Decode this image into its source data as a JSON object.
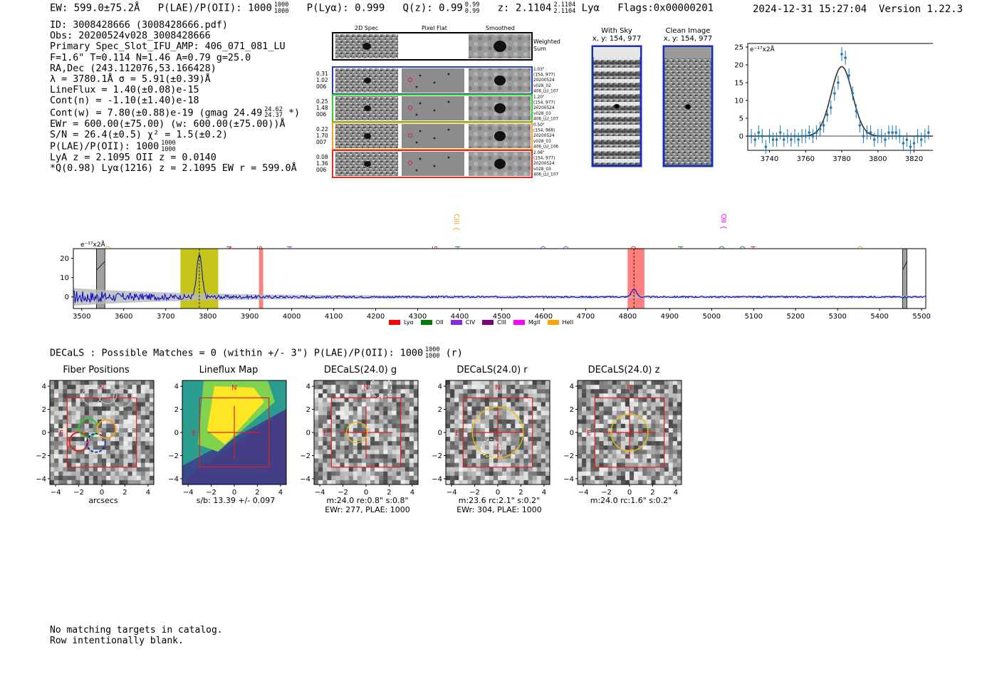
{
  "header": {
    "ew": "EW: 599.0±75.2Å",
    "plae_label": "P(LAE)/P(OII): 1000",
    "plae_hi": "1000",
    "plae_lo": "1000",
    "plya": "P(Lyα): 0.999",
    "qz_label": "Q(z): 0.99",
    "qz_hi": "0.99",
    "qz_lo": "0.99",
    "z_label": "z: 2.1104",
    "z_hi": "2.1104",
    "z_lo": "2.1104",
    "z_line": "Lyα",
    "flags": "Flags:0x00000201",
    "timestamp": "2024-12-31 15:27:04",
    "version": "Version 1.22.3"
  },
  "info": {
    "id": "ID: 3008428666 (3008428666.pdf)",
    "obs": "Obs: 20200524v028_3008428666",
    "primary": "Primary Spec_Slot_IFU_AMP: 406_071_081_LU",
    "fit": "F=1.6\"  T=0.114  N=1.46  A=0.79  g=25.0",
    "radec": "RA,Dec (243.112076,53.166428)",
    "lambda": "λ = 3780.1Å   σ = 5.91(±0.39)Å",
    "lineflux": "LineFlux = 1.40(±0.08)e-15",
    "contn": "Cont(n) = -1.10(±1.40)e-18",
    "contw": "Cont(w) = 7.80(±0.88)e-19 (gmag 24.49",
    "contw_hi": "24.62",
    "contw_lo": "24.37",
    "contw_end": "*)",
    "ewr": "EWr = 600.00(±75.00) (w: 600.00(±75.00))Å",
    "sn": "S/N = 26.4(±0.5)  χ² = 1.5(±0.2)",
    "plae": "P(LAE)/P(OII): 1000",
    "plae_hi": "1000",
    "plae_lo": "1000",
    "lya": "LyA z = 2.1095  OII z = 0.0140",
    "q": "*Q(0.98) Lyα(1216) z = 2.1095  EW r = 599.0Å"
  },
  "spec2d": {
    "col_2d": "2D Spec",
    "col_flat": "Pixel Flat",
    "col_smooth": "Smoothed",
    "weighted": "Weighted",
    "sum": "Sum",
    "rows": [
      {
        "w1": "0.31",
        "w2": "1.02",
        "fib": "006",
        "dist": "1.03\"",
        "xy": "(154, 977)",
        "date": "20200524",
        "shot": "v028_02",
        "amp": "406_LU_107",
        "color": "#1f3fbf"
      },
      {
        "w1": "0.25",
        "w2": "1.48",
        "fib": "006",
        "dist": "1.20\"",
        "xy": "(154, 977)",
        "date": "20200524",
        "shot": "v028_03",
        "amp": "406_LU_107",
        "color": "#2ecc2e"
      },
      {
        "w1": "0.22",
        "w2": "1.70",
        "fib": "007",
        "dist": "0.50\"",
        "xy": "(154, 968)",
        "date": "20200524",
        "shot": "v028_03",
        "amp": "406_LU_106",
        "color": "#f0a020"
      },
      {
        "w1": "0.08",
        "w2": "1.36",
        "fib": "006",
        "dist": "2.06\"",
        "xy": "(154, 977)",
        "date": "20200524",
        "shot": "v028_03",
        "amp": "406_LU_107",
        "color": "#e03020"
      }
    ]
  },
  "sky": {
    "with_sky_title": "With Sky",
    "with_sky_xy": "x, y: 154, 977",
    "clean_title": "Clean Image",
    "clean_xy": "x, y: 154, 977"
  },
  "zoom_units": "e⁻¹⁷x2Å",
  "full_units": "e⁻¹⁷x2Å",
  "line_labels": [
    {
      "name": "CIV",
      "color": "#f0a020"
    },
    {
      "name": "NV",
      "color": "#e02020"
    },
    {
      "name": "SiII",
      "color": "#e02020"
    },
    {
      "name": "HeII",
      "color": "#9a30e0"
    },
    {
      "name": "SiIV",
      "color": "#e02020"
    },
    {
      "name": "CIII",
      "color": "#f0a020"
    },
    {
      "name": "Hγ",
      "color": "#1a8a1a"
    },
    {
      "name": "CII",
      "color": "#9a30e0"
    },
    {
      "name": "CIII",
      "color": "#9a30e0"
    },
    {
      "name": "CIV",
      "color": "#e02020"
    },
    {
      "name": "Hβ",
      "color": "#1a8a1a"
    },
    {
      "name": "OII",
      "color": "#ff00ff"
    },
    {
      "name": "OIII",
      "color": "#1a8a1a"
    },
    {
      "name": "OIII",
      "color": "#1a8a1a"
    },
    {
      "name": "HeII",
      "color": "#e02020"
    },
    {
      "name": "CII",
      "color": "#f0a020"
    }
  ],
  "legend": [
    {
      "name": "Lyα",
      "color": "#ff0000"
    },
    {
      "name": "OII",
      "color": "#008000"
    },
    {
      "name": "CIV",
      "color": "#8a2be2"
    },
    {
      "name": "CIII",
      "color": "#800080"
    },
    {
      "name": "MgII",
      "color": "#ff00ff"
    },
    {
      "name": "HeII",
      "color": "#ffa500"
    }
  ],
  "decals_line": "DECaLS : Possible Matches = 0 (within +/- 3\")  P(LAE)/P(OII): 1000",
  "decals_hi": "1000",
  "decals_lo": "1000",
  "decals_end": "(r)",
  "cutouts": [
    {
      "title": "Fiber Positions",
      "cap1": "arcsecs",
      "cap2": ""
    },
    {
      "title": "Lineflux Map",
      "cap1": "s/b: 13.39 +/- 0.097",
      "cap2": ""
    },
    {
      "title": "DECaLS(24.0) g",
      "cap1": "m:24.0  re:0.8\"  s:0.8\"",
      "cap2": "EWr: 277, PLAE: 1000"
    },
    {
      "title": "DECaLS(24.0) r",
      "cap1": "m:23.6 rc:2.1\"  s:0.2\"",
      "cap2": "EWr: 304, PLAE: 1000"
    },
    {
      "title": "DECaLS(24.0) z",
      "cap1": "m:24.0 rc:1.6\"  s:0.2\"",
      "cap2": ""
    }
  ],
  "compass_n": "N",
  "compass_e": "E",
  "footer": {
    "line1": "No matching targets in catalog.",
    "line2": "Row intentionally blank."
  },
  "chart_data": [
    {
      "type": "scatter",
      "title": "",
      "ylabel": "e⁻¹⁷x2Å",
      "xlim": [
        3728,
        3832
      ],
      "ylim": [
        -4,
        26
      ],
      "xticks": [
        3740,
        3760,
        3780,
        3800,
        3820
      ],
      "yticks": [
        0,
        5,
        10,
        15,
        20,
        25
      ],
      "x": [
        3730,
        3732,
        3734,
        3736,
        3738,
        3740,
        3742,
        3744,
        3746,
        3748,
        3750,
        3752,
        3754,
        3756,
        3758,
        3760,
        3762,
        3764,
        3766,
        3768,
        3770,
        3772,
        3774,
        3776,
        3778,
        3780,
        3782,
        3784,
        3786,
        3788,
        3790,
        3792,
        3794,
        3796,
        3798,
        3800,
        3802,
        3804,
        3806,
        3808,
        3810,
        3812,
        3814,
        3816,
        3818,
        3820,
        3822,
        3824,
        3826,
        3828
      ],
      "y": [
        0,
        -1,
        1,
        0,
        -3,
        0,
        -1,
        -1,
        1,
        -1,
        0,
        -1,
        0,
        -1,
        0,
        0,
        1,
        0,
        1,
        2,
        3,
        6,
        8,
        12,
        15,
        23,
        22,
        17,
        12,
        7,
        3,
        0,
        1,
        1,
        -1,
        0,
        0,
        -1,
        1,
        1,
        1,
        0,
        -2,
        -1,
        -3,
        -2,
        0,
        -1,
        0,
        1
      ],
      "fit": "gaussian centred at 3780 with peak 19.5"
    },
    {
      "type": "line",
      "title": "",
      "ylabel": "e⁻¹⁷x2Å",
      "xlim": [
        3480,
        5510
      ],
      "ylim": [
        -6,
        25
      ],
      "xticks": [
        3500,
        3600,
        3700,
        3800,
        3900,
        4000,
        4100,
        4200,
        4300,
        4400,
        4500,
        4600,
        4700,
        4800,
        4900,
        5000,
        5100,
        5200,
        5300,
        5400,
        5500
      ],
      "yticks": [
        0,
        10,
        20
      ],
      "peaks": [
        {
          "x": 3780,
          "y": 22
        },
        {
          "x": 4815,
          "y": 4
        }
      ],
      "highlight_bands": [
        {
          "x0": 3735,
          "x1": 3825,
          "color": "#bfbf00"
        },
        {
          "x0": 3922,
          "x1": 3932,
          "color": "#ff7070"
        },
        {
          "x0": 4800,
          "x1": 4840,
          "color": "#ff7070"
        }
      ],
      "masked_bands": [
        {
          "x0": 3535,
          "x1": 3555
        },
        {
          "x0": 5455,
          "x1": 5465
        }
      ]
    }
  ]
}
